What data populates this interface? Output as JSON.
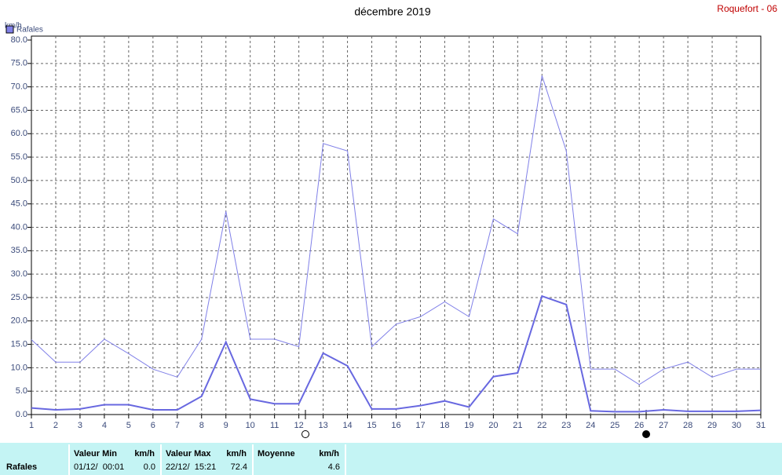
{
  "chart_data": {
    "type": "line",
    "title": "décembre 2019",
    "station": "Roquefort - 06",
    "y_unit": "km/h",
    "categories": [
      "1",
      "2",
      "3",
      "4",
      "5",
      "6",
      "7",
      "8",
      "9",
      "10",
      "11",
      "12",
      "13",
      "14",
      "15",
      "16",
      "17",
      "18",
      "19",
      "20",
      "21",
      "22",
      "23",
      "24",
      "25",
      "26",
      "27",
      "28",
      "29",
      "30",
      "31"
    ],
    "series": [
      {
        "name": "Rafales",
        "color": "#8080e8",
        "width": 1,
        "values": [
          16,
          11.2,
          11.2,
          16.1,
          13,
          9.7,
          8,
          16.1,
          43.4,
          16.1,
          16.1,
          14.5,
          57.9,
          56.3,
          14.5,
          19.3,
          20.9,
          24.1,
          20.9,
          41.8,
          38.6,
          72.4,
          56.3,
          9.7,
          9.7,
          6.4,
          9.7,
          11.2,
          8,
          9.7,
          9.7
        ]
      },
      {
        "color": "#6868e0",
        "width": 2,
        "values": [
          1.4,
          1,
          1.2,
          2.1,
          2.1,
          1,
          1,
          3.9,
          15.5,
          3.3,
          2.3,
          2.3,
          13.1,
          10.4,
          1.2,
          1.2,
          1.9,
          2.9,
          1.6,
          8.1,
          8.9,
          25.3,
          23.5,
          0.8,
          0.6,
          0.6,
          1,
          0.7,
          0.7,
          0.7,
          0.9
        ]
      }
    ],
    "ylim": [
      0,
      80
    ],
    "yticks": [
      {
        "value": 0,
        "label": "0.0"
      },
      {
        "value": 5,
        "label": "5.0"
      },
      {
        "value": 10,
        "label": "10.0"
      },
      {
        "value": 15,
        "label": "15.0"
      },
      {
        "value": 20,
        "label": "20.0"
      },
      {
        "value": 25,
        "label": "25.0"
      },
      {
        "value": 30,
        "label": "30.0"
      },
      {
        "value": 35,
        "label": "35.0"
      },
      {
        "value": 40,
        "label": "40.0"
      },
      {
        "value": 45,
        "label": "45.0"
      },
      {
        "value": 50,
        "label": "50.0"
      },
      {
        "value": 55,
        "label": "55.0"
      },
      {
        "value": 60,
        "label": "60.0"
      },
      {
        "value": 65,
        "label": "65.0"
      },
      {
        "value": 70,
        "label": "70.0"
      },
      {
        "value": 75,
        "label": "75.0"
      },
      {
        "value": 80,
        "label": "80.0"
      }
    ],
    "grid": true
  },
  "footer": {
    "label": "Rafales",
    "columns": [
      {
        "header": "Valeur Min",
        "unit": "km/h",
        "date": "01/12/  00:01",
        "value": "0.0"
      },
      {
        "header": "Valeur Max",
        "unit": "km/h",
        "date": "22/12/  15:21",
        "value": "72.4"
      },
      {
        "header": "Moyenne",
        "unit": "km/h",
        "value": "4.6"
      }
    ]
  }
}
